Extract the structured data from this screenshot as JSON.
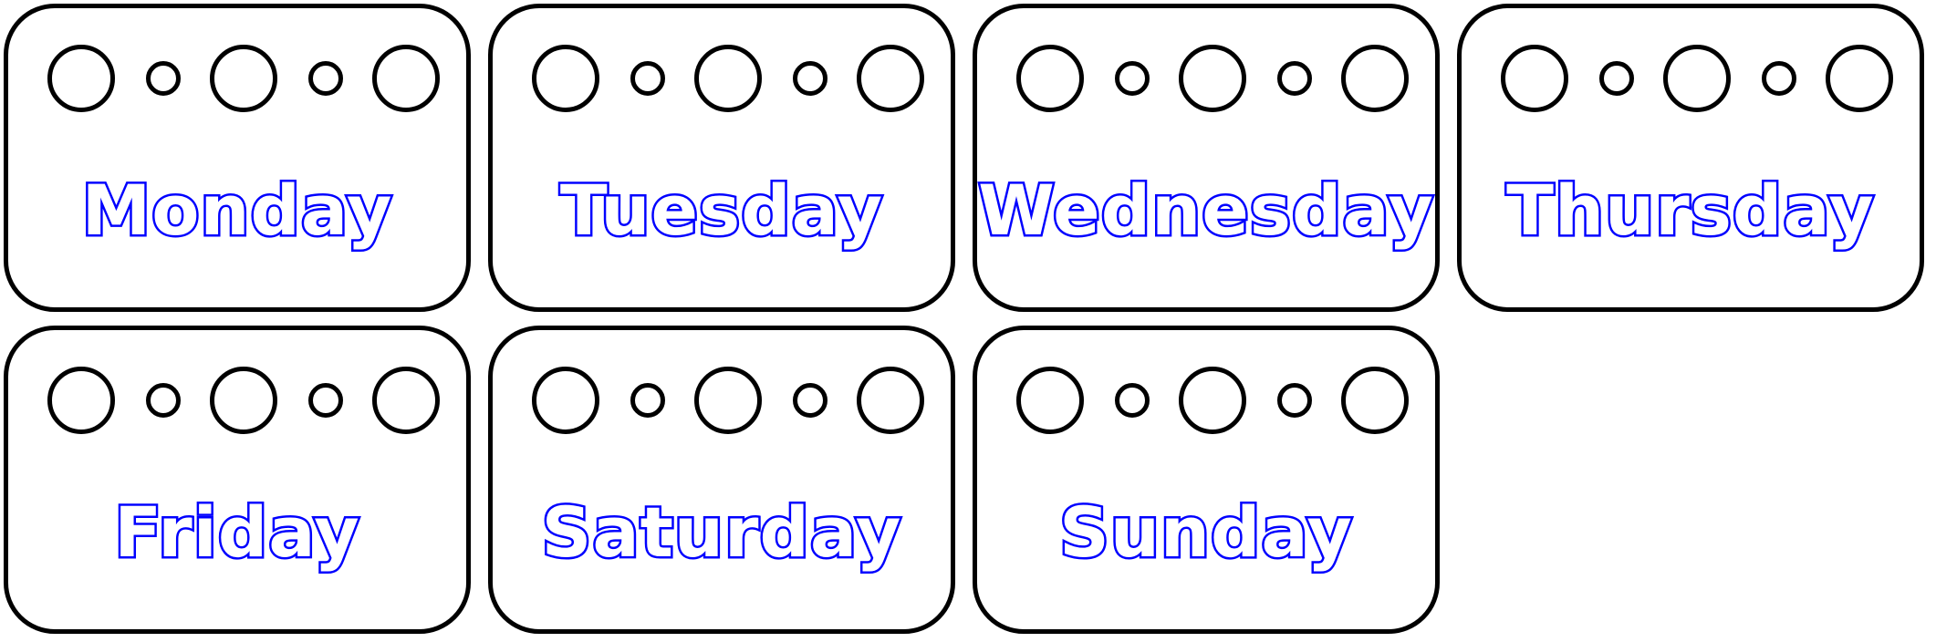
{
  "colors": {
    "text_outline": "#0000ff",
    "card_border": "#000000",
    "background": "#ffffff"
  },
  "cards": [
    {
      "label": "Monday"
    },
    {
      "label": "Tuesday"
    },
    {
      "label": "Wednesday"
    },
    {
      "label": "Thursday"
    },
    {
      "label": "Friday"
    },
    {
      "label": "Saturday"
    },
    {
      "label": "Sunday"
    }
  ]
}
